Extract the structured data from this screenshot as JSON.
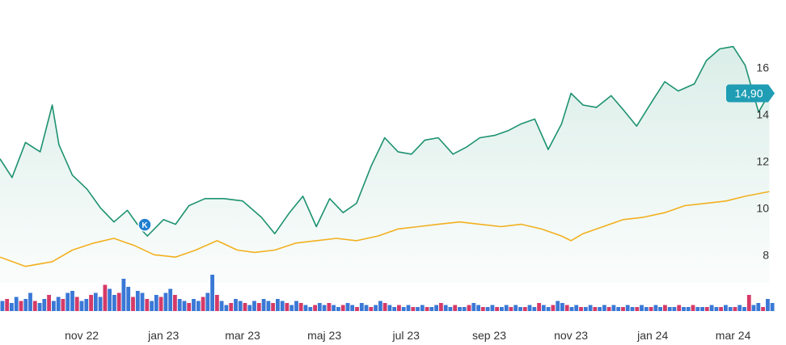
{
  "chart_data": {
    "type": "line",
    "x_ticks": [
      "nov 22",
      "jan 23",
      "mar 23",
      "maj 23",
      "jul 23",
      "sep 23",
      "nov 23",
      "jan 24",
      "mar 24"
    ],
    "y_ticks": [
      "8",
      "10",
      "12",
      "14",
      "16"
    ],
    "ylim": [
      6.8,
      18.2
    ],
    "x_range": [
      "2022-09-01",
      "2024-04-01"
    ],
    "last_price_label": "14,90",
    "last_price": 14.9,
    "marker": {
      "label": "K",
      "date": "2022-12-18",
      "value": 8.8
    },
    "colors": {
      "price": "#1d9270",
      "index": "#f2b01f",
      "pill": "#1e9db4",
      "marker": "#1f7fd1",
      "vol_up": "#3a78d6",
      "vol_down": "#d63a67"
    },
    "series": [
      {
        "key": "price",
        "dates": [
          "2022-09-01",
          "2022-09-10",
          "2022-09-20",
          "2022-10-01",
          "2022-10-10",
          "2022-10-15",
          "2022-10-25",
          "2022-11-05",
          "2022-11-15",
          "2022-11-25",
          "2022-12-05",
          "2022-12-15",
          "2022-12-20",
          "2023-01-01",
          "2023-01-10",
          "2023-01-20",
          "2023-02-01",
          "2023-02-15",
          "2023-03-01",
          "2023-03-15",
          "2023-03-25",
          "2023-04-05",
          "2023-04-15",
          "2023-04-25",
          "2023-05-05",
          "2023-05-15",
          "2023-05-25",
          "2023-06-05",
          "2023-06-15",
          "2023-06-25",
          "2023-07-05",
          "2023-07-15",
          "2023-07-25",
          "2023-08-05",
          "2023-08-15",
          "2023-08-25",
          "2023-09-05",
          "2023-09-15",
          "2023-09-25",
          "2023-10-05",
          "2023-10-15",
          "2023-10-25",
          "2023-11-01",
          "2023-11-10",
          "2023-11-20",
          "2023-12-01",
          "2023-12-10",
          "2023-12-20",
          "2024-01-01",
          "2024-01-10",
          "2024-01-20",
          "2024-02-01",
          "2024-02-10",
          "2024-02-20",
          "2024-03-01",
          "2024-03-10",
          "2024-03-20",
          "2024-03-28"
        ],
        "values": [
          12.1,
          11.3,
          12.8,
          12.4,
          14.4,
          12.7,
          11.4,
          10.8,
          10.0,
          9.4,
          9.9,
          9.1,
          8.8,
          9.5,
          9.3,
          10.1,
          10.4,
          10.4,
          10.3,
          9.6,
          8.9,
          9.8,
          10.5,
          9.2,
          10.4,
          9.8,
          10.2,
          11.8,
          13.0,
          12.4,
          12.3,
          12.9,
          13.0,
          12.3,
          12.6,
          13.0,
          13.1,
          13.3,
          13.6,
          13.8,
          12.5,
          13.6,
          14.9,
          14.4,
          14.3,
          14.8,
          14.2,
          13.5,
          14.6,
          15.4,
          15.0,
          15.3,
          16.3,
          16.8,
          16.9,
          16.1,
          14.1,
          14.9
        ]
      },
      {
        "key": "index",
        "dates": [
          "2022-09-01",
          "2022-09-20",
          "2022-10-10",
          "2022-10-25",
          "2022-11-10",
          "2022-11-25",
          "2022-12-10",
          "2022-12-25",
          "2023-01-10",
          "2023-01-25",
          "2023-02-10",
          "2023-02-25",
          "2023-03-10",
          "2023-03-25",
          "2023-04-10",
          "2023-04-25",
          "2023-05-10",
          "2023-05-25",
          "2023-06-10",
          "2023-06-25",
          "2023-07-10",
          "2023-07-25",
          "2023-08-10",
          "2023-08-25",
          "2023-09-10",
          "2023-09-25",
          "2023-10-10",
          "2023-10-25",
          "2023-11-01",
          "2023-11-10",
          "2023-11-25",
          "2023-12-10",
          "2023-12-25",
          "2024-01-10",
          "2024-01-25",
          "2024-02-10",
          "2024-02-25",
          "2024-03-10",
          "2024-03-28"
        ],
        "values": [
          7.9,
          7.5,
          7.7,
          8.2,
          8.5,
          8.7,
          8.4,
          8.0,
          7.9,
          8.2,
          8.6,
          8.2,
          8.1,
          8.2,
          8.5,
          8.6,
          8.7,
          8.6,
          8.8,
          9.1,
          9.2,
          9.3,
          9.4,
          9.3,
          9.2,
          9.3,
          9.1,
          8.8,
          8.6,
          8.9,
          9.2,
          9.5,
          9.6,
          9.8,
          10.1,
          10.2,
          10.3,
          10.5,
          10.7
        ]
      }
    ],
    "volume": {
      "ymax": 2.0,
      "values": [
        0.5,
        0.6,
        0.4,
        0.7,
        0.5,
        0.6,
        0.9,
        0.5,
        0.4,
        0.6,
        0.8,
        0.5,
        0.7,
        0.6,
        0.9,
        1.0,
        0.7,
        0.5,
        0.6,
        0.8,
        0.9,
        0.7,
        1.3,
        1.1,
        0.8,
        0.9,
        1.6,
        1.2,
        0.7,
        1.0,
        0.9,
        0.6,
        0.5,
        0.8,
        0.7,
        0.9,
        1.1,
        0.8,
        0.6,
        0.5,
        0.4,
        0.6,
        0.5,
        0.7,
        0.9,
        1.8,
        0.8,
        0.5,
        0.3,
        0.4,
        0.6,
        0.5,
        0.4,
        0.3,
        0.5,
        0.4,
        0.6,
        0.5,
        0.4,
        0.6,
        0.5,
        0.4,
        0.3,
        0.5,
        0.4,
        0.3,
        0.2,
        0.3,
        0.4,
        0.3,
        0.4,
        0.3,
        0.2,
        0.3,
        0.4,
        0.3,
        0.2,
        0.4,
        0.3,
        0.2,
        0.3,
        0.5,
        0.4,
        0.3,
        0.2,
        0.3,
        0.2,
        0.3,
        0.2,
        0.2,
        0.3,
        0.2,
        0.2,
        0.3,
        0.4,
        0.3,
        0.2,
        0.3,
        0.2,
        0.2,
        0.3,
        0.4,
        0.3,
        0.2,
        0.2,
        0.3,
        0.2,
        0.2,
        0.3,
        0.2,
        0.3,
        0.2,
        0.2,
        0.3,
        0.2,
        0.4,
        0.3,
        0.2,
        0.3,
        0.5,
        0.4,
        0.3,
        0.2,
        0.3,
        0.2,
        0.2,
        0.3,
        0.2,
        0.2,
        0.3,
        0.2,
        0.3,
        0.2,
        0.2,
        0.3,
        0.2,
        0.2,
        0.3,
        0.2,
        0.2,
        0.3,
        0.2,
        0.3,
        0.2,
        0.2,
        0.3,
        0.2,
        0.2,
        0.3,
        0.2,
        0.2,
        0.2,
        0.3,
        0.2,
        0.2,
        0.3,
        0.2,
        0.2,
        0.3,
        0.2,
        0.8,
        0.3,
        0.4,
        0.2,
        0.6,
        0.4
      ]
    }
  }
}
